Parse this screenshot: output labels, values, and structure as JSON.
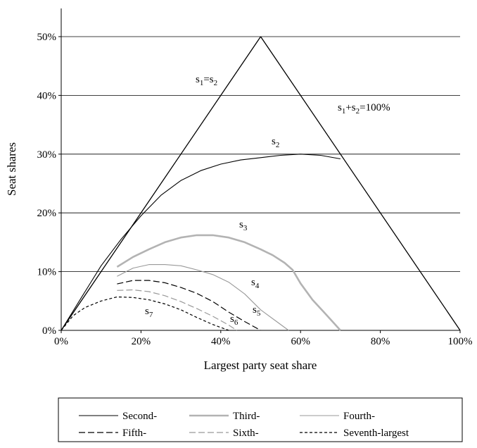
{
  "chart_data": {
    "type": "line",
    "xlabel": "Largest party seat share",
    "ylabel": "Seat shares",
    "xlim": [
      0,
      100
    ],
    "ylim": [
      0,
      50
    ],
    "x_ticks": [
      "0%",
      "20%",
      "40%",
      "60%",
      "80%",
      "100%"
    ],
    "y_ticks": [
      "0%",
      "10%",
      "20%",
      "30%",
      "40%",
      "50%"
    ],
    "x_tick_values": [
      0,
      20,
      40,
      60,
      80,
      100
    ],
    "y_tick_values": [
      0,
      10,
      20,
      30,
      40,
      50
    ],
    "grid": "horizontal",
    "reference_lines": [
      {
        "label": "s1=s2",
        "points": [
          [
            0,
            0
          ],
          [
            50,
            50
          ]
        ]
      },
      {
        "label": "s1+s2=100%",
        "points": [
          [
            50,
            50
          ],
          [
            100,
            0
          ]
        ]
      }
    ],
    "annotations": {
      "s1_eq_s2": {
        "s1": "s",
        "sub1": "1",
        "eq": "=s",
        "sub2": "2"
      },
      "sum_100": {
        "s1": "s",
        "sub1": "1",
        "plus": "+s",
        "sub2": "2",
        "tail": "=100%"
      },
      "s2": {
        "s": "s",
        "sub": "2"
      },
      "s3": {
        "s": "s",
        "sub": "3"
      },
      "s4": {
        "s": "s",
        "sub": "4"
      },
      "s5": {
        "s": "s",
        "sub": "5"
      },
      "s6": {
        "s": "s",
        "sub": "6"
      },
      "s7": {
        "s": "s",
        "sub": "7"
      }
    },
    "series": [
      {
        "name": "Second-",
        "color": "#000000",
        "style": "solid",
        "x": [
          0,
          5,
          10,
          15,
          20,
          25,
          30,
          35,
          40,
          45,
          50,
          55,
          60,
          65,
          70
        ],
        "y": [
          0,
          5.5,
          11,
          15.5,
          19.5,
          23,
          25.5,
          27.2,
          28.3,
          29,
          29.4,
          29.8,
          30,
          29.8,
          29.2
        ]
      },
      {
        "name": "Third-",
        "color": "#b3b3b3",
        "style": "thick",
        "x": [
          14,
          18,
          22,
          26,
          30,
          34,
          38,
          42,
          46,
          50,
          53,
          56,
          58,
          60,
          63,
          66,
          68,
          70
        ],
        "y": [
          10.8,
          12.5,
          13.8,
          15,
          15.8,
          16.2,
          16.2,
          15.8,
          15,
          13.8,
          12.8,
          11.5,
          10.3,
          8,
          5.2,
          3,
          1.5,
          0
        ]
      },
      {
        "name": "Fourth-",
        "color": "#999999",
        "style": "solid",
        "x": [
          14,
          18,
          22,
          26,
          30,
          34,
          38,
          42,
          46,
          50,
          54,
          57
        ],
        "y": [
          9.2,
          10.6,
          11.2,
          11.2,
          11,
          10.3,
          9.5,
          8.2,
          6.2,
          3.5,
          1.5,
          0
        ]
      },
      {
        "name": "Fifth-",
        "color": "#000000",
        "style": "dashed",
        "x": [
          14,
          18,
          22,
          26,
          30,
          34,
          38,
          42,
          46,
          50
        ],
        "y": [
          7.9,
          8.5,
          8.5,
          8.1,
          7.3,
          6.3,
          4.9,
          3.1,
          1.5,
          0
        ]
      },
      {
        "name": "Sixth-",
        "color": "#999999",
        "style": "dashed",
        "x": [
          14,
          18,
          22,
          26,
          30,
          34,
          38,
          42,
          44
        ],
        "y": [
          6.8,
          6.9,
          6.6,
          5.9,
          4.9,
          3.7,
          2.4,
          0.9,
          0
        ]
      },
      {
        "name": "Seventh-largest",
        "color": "#000000",
        "style": "dotted",
        "x": [
          0,
          3,
          6,
          10,
          14,
          18,
          22,
          26,
          30,
          34,
          38,
          42
        ],
        "y": [
          0,
          2.5,
          3.9,
          5,
          5.7,
          5.6,
          5.2,
          4.5,
          3.5,
          2.2,
          1,
          0
        ]
      }
    ],
    "legend": {
      "placement": "bottom",
      "columns": 3
    }
  }
}
